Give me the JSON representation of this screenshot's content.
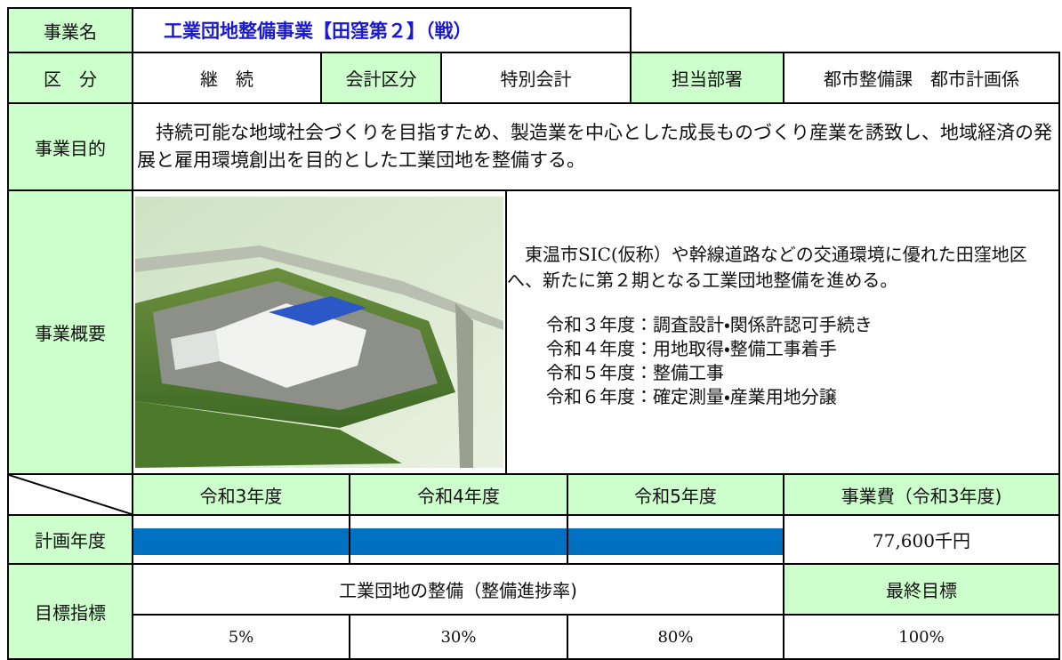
{
  "header": {
    "name_label": "事業名",
    "title": "工業団地整備事業【田窪第２】（戦）"
  },
  "classification": {
    "label": "区　分",
    "value": "継　続",
    "account_label": "会計区分",
    "account": "特別会計",
    "dept_label": "担当部署",
    "dept": "都市整備課　都市計画係"
  },
  "purpose": {
    "label": "事業目的",
    "text": "持続可能な地域社会づくりを目指すため、製造業を中心とした成長ものづくり産業を誘致し、地域経済の発展と雇用環境創出を目的とした工業団地を整備する。"
  },
  "overview": {
    "label": "事業概要",
    "description": "東温市SIC(仮称）や幹線道路などの交通環境に優れた田窪地区へ、新たに第２期となる工業団地整備を進める。",
    "schedule": [
      "令和３年度：調査設計・関係許認可手続き",
      "令和４年度：用地取得・整備工事着手",
      "令和５年度：整備工事",
      "令和６年度：確定測量・産業用地分譲"
    ]
  },
  "plan": {
    "years": [
      "令和3年度",
      "令和4年度",
      "令和5年度"
    ],
    "cost_label": "事業費（令和3年度)",
    "row_label": "計画年度",
    "cost": "77,600千円"
  },
  "targets": {
    "label": "目標指標",
    "indicator": "工業団地の整備（整備進捗率)",
    "final_label": "最終目標",
    "values": [
      "5%",
      "30%",
      "80%"
    ],
    "final": "100%"
  }
}
